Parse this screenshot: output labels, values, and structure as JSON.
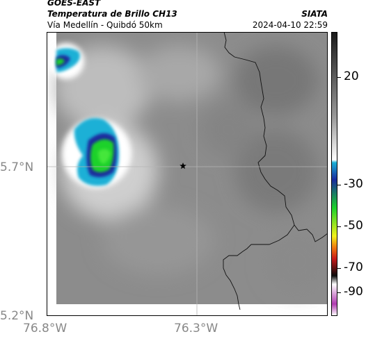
{
  "header": {
    "satellite": "GOES-EAST",
    "product": "Temperatura de Brillo CH13",
    "route": "Vía Medellín - Quibdó 50km",
    "org": "SIATA",
    "timestamp": "2024-04-10 22:59"
  },
  "axes": {
    "lat_labels": [
      "5.7°N",
      "5.2°N"
    ],
    "lon_labels": [
      "76.8°W",
      "76.3°W"
    ]
  },
  "colorbar": {
    "tick_labels": [
      "20",
      "-30",
      "-50",
      "-70",
      "-90"
    ],
    "colors": {
      "top": "#1a1a1a",
      "mid_gray": "#9a9a9a",
      "white": "#ffffff",
      "cyan": "#1ab0d6",
      "blue": "#1a2a9e",
      "green": "#1bd12a",
      "yellow": "#f2f21a",
      "orange": "#f07a10",
      "red": "#c81a1a",
      "black": "#0a0a0a",
      "magenta": "#b03ab0"
    }
  },
  "map": {
    "background_gray": "#8c8c8c",
    "marker": "star-icon"
  }
}
